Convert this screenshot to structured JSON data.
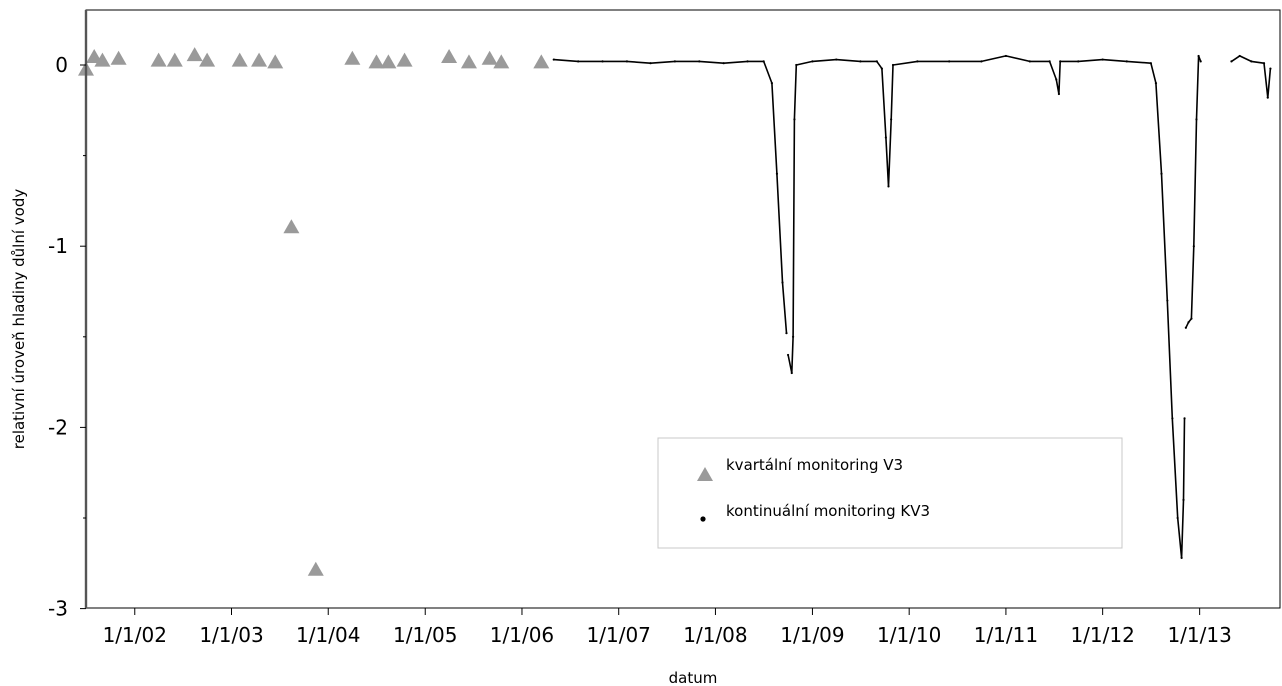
{
  "chart_data": {
    "type": "scatter",
    "xlabel": "datum",
    "ylabel": "relativní úroveň hladiny důlní vody",
    "xlim": [
      "2001-07-01",
      "2013-10-01"
    ],
    "ylim": [
      -3,
      0.3
    ],
    "yticks": [
      0,
      -1,
      -2,
      -3
    ],
    "xticks": [
      {
        "date": "2002-01-01",
        "label": "1/1/02"
      },
      {
        "date": "2003-01-01",
        "label": "1/1/03"
      },
      {
        "date": "2004-01-01",
        "label": "1/1/04"
      },
      {
        "date": "2005-01-01",
        "label": "1/1/05"
      },
      {
        "date": "2006-01-01",
        "label": "1/1/06"
      },
      {
        "date": "2007-01-01",
        "label": "1/1/07"
      },
      {
        "date": "2008-01-01",
        "label": "1/1/08"
      },
      {
        "date": "2009-01-01",
        "label": "1/1/09"
      },
      {
        "date": "2010-01-01",
        "label": "1/1/10"
      },
      {
        "date": "2011-01-01",
        "label": "1/1/11"
      },
      {
        "date": "2012-01-01",
        "label": "1/1/12"
      },
      {
        "date": "2013-01-01",
        "label": "1/1/13"
      }
    ],
    "grid": false,
    "legend": "lower-right, inside",
    "series": [
      {
        "name": "kvartální monitoring V3",
        "marker": "triangle",
        "color": "#9a9a9a",
        "points": [
          {
            "x": "2001-07-01",
            "y": -0.02
          },
          {
            "x": "2001-08-01",
            "y": 0.05
          },
          {
            "x": "2001-09-01",
            "y": 0.03
          },
          {
            "x": "2001-11-01",
            "y": 0.04
          },
          {
            "x": "2002-04-01",
            "y": 0.03
          },
          {
            "x": "2002-06-01",
            "y": 0.03
          },
          {
            "x": "2002-08-15",
            "y": 0.06
          },
          {
            "x": "2002-10-01",
            "y": 0.03
          },
          {
            "x": "2003-02-01",
            "y": 0.03
          },
          {
            "x": "2003-04-15",
            "y": 0.03
          },
          {
            "x": "2003-06-15",
            "y": 0.02
          },
          {
            "x": "2003-08-15",
            "y": -0.89
          },
          {
            "x": "2003-11-15",
            "y": -2.78
          },
          {
            "x": "2004-04-01",
            "y": 0.04
          },
          {
            "x": "2004-07-01",
            "y": 0.02
          },
          {
            "x": "2004-08-15",
            "y": 0.02
          },
          {
            "x": "2004-10-15",
            "y": 0.03
          },
          {
            "x": "2005-04-01",
            "y": 0.05
          },
          {
            "x": "2005-06-15",
            "y": 0.02
          },
          {
            "x": "2005-09-01",
            "y": 0.04
          },
          {
            "x": "2005-10-15",
            "y": 0.02
          },
          {
            "x": "2006-03-15",
            "y": 0.02
          }
        ]
      },
      {
        "name": "kontinuální monitoring KV3",
        "marker": "dot-line",
        "color": "#000000",
        "segments": [
          [
            {
              "x": "2006-05-01",
              "y": 0.03
            },
            {
              "x": "2006-08-01",
              "y": 0.02
            },
            {
              "x": "2006-11-01",
              "y": 0.02
            },
            {
              "x": "2007-02-01",
              "y": 0.02
            },
            {
              "x": "2007-05-01",
              "y": 0.01
            },
            {
              "x": "2007-08-01",
              "y": 0.02
            },
            {
              "x": "2007-11-01",
              "y": 0.02
            },
            {
              "x": "2008-02-01",
              "y": 0.01
            },
            {
              "x": "2008-05-01",
              "y": 0.02
            },
            {
              "x": "2008-07-01",
              "y": 0.02
            },
            {
              "x": "2008-08-01",
              "y": -0.1
            },
            {
              "x": "2008-08-20",
              "y": -0.6
            },
            {
              "x": "2008-09-10",
              "y": -1.2
            },
            {
              "x": "2008-09-25",
              "y": -1.48
            }
          ],
          [
            {
              "x": "2008-10-01",
              "y": -1.6
            },
            {
              "x": "2008-10-15",
              "y": -1.7
            },
            {
              "x": "2008-10-20",
              "y": -1.5
            },
            {
              "x": "2008-10-25",
              "y": -0.3
            },
            {
              "x": "2008-11-01",
              "y": 0.0
            },
            {
              "x": "2009-01-01",
              "y": 0.02
            },
            {
              "x": "2009-04-01",
              "y": 0.03
            },
            {
              "x": "2009-07-01",
              "y": 0.02
            },
            {
              "x": "2009-09-01",
              "y": 0.02
            },
            {
              "x": "2009-09-20",
              "y": -0.02
            },
            {
              "x": "2009-10-05",
              "y": -0.4
            },
            {
              "x": "2009-10-15",
              "y": -0.67
            },
            {
              "x": "2009-10-25",
              "y": -0.3
            },
            {
              "x": "2009-11-01",
              "y": 0.0
            },
            {
              "x": "2010-02-01",
              "y": 0.02
            },
            {
              "x": "2010-06-01",
              "y": 0.02
            },
            {
              "x": "2010-10-01",
              "y": 0.02
            },
            {
              "x": "2011-01-01",
              "y": 0.05
            },
            {
              "x": "2011-04-01",
              "y": 0.02
            },
            {
              "x": "2011-06-15",
              "y": 0.02
            },
            {
              "x": "2011-07-10",
              "y": -0.08
            },
            {
              "x": "2011-07-20",
              "y": -0.16
            },
            {
              "x": "2011-07-25",
              "y": 0.02
            },
            {
              "x": "2011-10-01",
              "y": 0.02
            },
            {
              "x": "2012-01-01",
              "y": 0.03
            },
            {
              "x": "2012-04-01",
              "y": 0.02
            },
            {
              "x": "2012-07-01",
              "y": 0.01
            },
            {
              "x": "2012-07-20",
              "y": -0.1
            },
            {
              "x": "2012-08-10",
              "y": -0.6
            },
            {
              "x": "2012-09-01",
              "y": -1.3
            },
            {
              "x": "2012-09-20",
              "y": -1.95
            },
            {
              "x": "2012-10-10",
              "y": -2.5
            },
            {
              "x": "2012-10-25",
              "y": -2.72
            },
            {
              "x": "2012-11-01",
              "y": -2.4
            },
            {
              "x": "2012-11-05",
              "y": -1.95
            }
          ],
          [
            {
              "x": "2012-11-10",
              "y": -1.45
            },
            {
              "x": "2012-11-20",
              "y": -1.42
            },
            {
              "x": "2012-12-01",
              "y": -1.4
            },
            {
              "x": "2012-12-10",
              "y": -1.0
            },
            {
              "x": "2012-12-20",
              "y": -0.3
            },
            {
              "x": "2012-12-28",
              "y": 0.05
            },
            {
              "x": "2013-01-05",
              "y": 0.02
            }
          ],
          [
            {
              "x": "2013-05-01",
              "y": 0.02
            },
            {
              "x": "2013-06-01",
              "y": 0.05
            },
            {
              "x": "2013-07-15",
              "y": 0.02
            },
            {
              "x": "2013-09-01",
              "y": 0.01
            },
            {
              "x": "2013-09-15",
              "y": -0.18
            },
            {
              "x": "2013-09-25",
              "y": -0.02
            }
          ]
        ]
      }
    ]
  }
}
